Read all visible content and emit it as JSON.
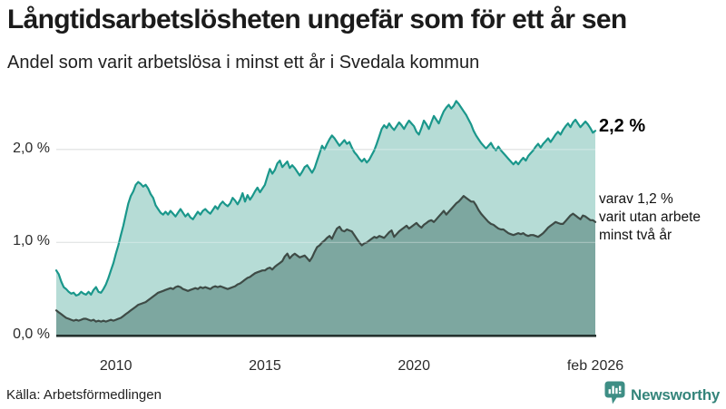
{
  "header": {
    "title": "Långtidsarbetslösheten ungefär som för ett år sen",
    "subtitle": "Andel som varit arbetslösa i minst ett år i Svedala kommun"
  },
  "annotations": {
    "latest_total": "2,2 %",
    "latest_sub_lines": [
      "varav 1,2 %",
      "varit utan arbete",
      "minst två år"
    ]
  },
  "footer": {
    "source": "Källa: Arbetsförmedlingen",
    "brand": "Newsworthy"
  },
  "colors": {
    "brand_teal": "#35857b",
    "line_1yr": "#1a978b",
    "fill_1yr": "#b6dcd6",
    "line_2yr": "#3e4b46",
    "fill_2yr": "#7da7a0",
    "grid": "#d8dcdb",
    "axis": "#25322f"
  },
  "chart_data": {
    "type": "area",
    "title": "Långtidsarbetslösheten ungefär som för ett år sen",
    "subtitle": "Andel som varit arbetslösa i minst ett år i Svedala kommun",
    "source": "Källa: Arbetsförmedlingen",
    "x_start": 2008.0,
    "x_end": 2026.083,
    "ylim": [
      0,
      2.6
    ],
    "grid": true,
    "grid_color": "#d8dcdb",
    "axis_color": "#25322f",
    "x_ticks": [
      {
        "label": "2010",
        "value": 2010
      },
      {
        "label": "2015",
        "value": 2015
      },
      {
        "label": "2020",
        "value": 2020
      },
      {
        "label": "feb 2026",
        "value": 2026.083
      }
    ],
    "y_ticks": [
      {
        "label": "0,0 %",
        "value": 0
      },
      {
        "label": "1,0 %",
        "value": 1
      },
      {
        "label": "2,0 %",
        "value": 2
      }
    ],
    "series": [
      {
        "name": "Andel som varit arbetslösa i minst ett år",
        "end_label": "2,2 %",
        "line_color": "#1a978b",
        "fill_color": "#b6dcd6",
        "values": [
          0.7,
          0.66,
          0.58,
          0.52,
          0.5,
          0.47,
          0.45,
          0.46,
          0.43,
          0.44,
          0.47,
          0.45,
          0.44,
          0.47,
          0.44,
          0.49,
          0.52,
          0.47,
          0.46,
          0.5,
          0.55,
          0.62,
          0.7,
          0.78,
          0.88,
          0.97,
          1.08,
          1.18,
          1.3,
          1.42,
          1.5,
          1.55,
          1.62,
          1.65,
          1.63,
          1.6,
          1.62,
          1.58,
          1.52,
          1.48,
          1.4,
          1.36,
          1.32,
          1.3,
          1.33,
          1.3,
          1.34,
          1.31,
          1.28,
          1.32,
          1.36,
          1.32,
          1.28,
          1.31,
          1.27,
          1.25,
          1.29,
          1.33,
          1.3,
          1.34,
          1.36,
          1.33,
          1.31,
          1.35,
          1.39,
          1.36,
          1.41,
          1.44,
          1.41,
          1.39,
          1.42,
          1.48,
          1.45,
          1.41,
          1.46,
          1.53,
          1.44,
          1.51,
          1.46,
          1.5,
          1.55,
          1.59,
          1.54,
          1.58,
          1.62,
          1.71,
          1.79,
          1.74,
          1.78,
          1.85,
          1.88,
          1.81,
          1.84,
          1.87,
          1.8,
          1.83,
          1.8,
          1.76,
          1.72,
          1.76,
          1.81,
          1.83,
          1.79,
          1.75,
          1.8,
          1.88,
          1.96,
          2.04,
          2.0,
          2.06,
          2.11,
          2.15,
          2.12,
          2.08,
          2.04,
          2.07,
          2.1,
          2.06,
          2.08,
          2.02,
          1.97,
          1.94,
          1.9,
          1.87,
          1.9,
          1.86,
          1.89,
          1.94,
          1.99,
          2.06,
          2.14,
          2.22,
          2.26,
          2.23,
          2.28,
          2.24,
          2.21,
          2.25,
          2.29,
          2.26,
          2.22,
          2.27,
          2.31,
          2.28,
          2.25,
          2.19,
          2.16,
          2.23,
          2.31,
          2.27,
          2.22,
          2.29,
          2.36,
          2.32,
          2.28,
          2.35,
          2.41,
          2.45,
          2.48,
          2.44,
          2.47,
          2.52,
          2.49,
          2.45,
          2.41,
          2.37,
          2.32,
          2.27,
          2.2,
          2.15,
          2.11,
          2.07,
          2.04,
          2.01,
          2.04,
          2.07,
          2.02,
          1.99,
          2.03,
          1.99,
          1.96,
          1.93,
          1.9,
          1.87,
          1.84,
          1.87,
          1.84,
          1.88,
          1.91,
          1.88,
          1.93,
          1.96,
          1.99,
          2.03,
          2.06,
          2.02,
          2.06,
          2.09,
          2.12,
          2.08,
          2.12,
          2.16,
          2.19,
          2.16,
          2.21,
          2.25,
          2.28,
          2.24,
          2.29,
          2.32,
          2.28,
          2.24,
          2.27,
          2.3,
          2.27,
          2.23,
          2.18,
          2.2
        ]
      },
      {
        "name": "varav arbetslösa i minst två år",
        "end_label": "varav 1,2 % varit utan arbete minst två år",
        "line_color": "#3e4b46",
        "fill_color": "#7da7a0",
        "values": [
          0.27,
          0.25,
          0.23,
          0.21,
          0.19,
          0.18,
          0.17,
          0.16,
          0.17,
          0.16,
          0.17,
          0.18,
          0.18,
          0.17,
          0.16,
          0.17,
          0.15,
          0.16,
          0.15,
          0.16,
          0.15,
          0.16,
          0.17,
          0.16,
          0.17,
          0.18,
          0.19,
          0.21,
          0.23,
          0.25,
          0.27,
          0.29,
          0.31,
          0.33,
          0.34,
          0.35,
          0.36,
          0.38,
          0.4,
          0.42,
          0.44,
          0.46,
          0.47,
          0.48,
          0.49,
          0.5,
          0.51,
          0.5,
          0.52,
          0.53,
          0.52,
          0.5,
          0.49,
          0.48,
          0.49,
          0.5,
          0.51,
          0.5,
          0.52,
          0.51,
          0.52,
          0.51,
          0.5,
          0.52,
          0.53,
          0.52,
          0.53,
          0.52,
          0.51,
          0.5,
          0.51,
          0.52,
          0.53,
          0.55,
          0.56,
          0.58,
          0.6,
          0.62,
          0.63,
          0.65,
          0.67,
          0.68,
          0.69,
          0.7,
          0.7,
          0.72,
          0.73,
          0.71,
          0.74,
          0.76,
          0.78,
          0.8,
          0.85,
          0.88,
          0.83,
          0.86,
          0.88,
          0.86,
          0.84,
          0.85,
          0.86,
          0.83,
          0.8,
          0.84,
          0.9,
          0.95,
          0.97,
          1.0,
          1.02,
          1.05,
          1.07,
          1.04,
          1.1,
          1.15,
          1.17,
          1.13,
          1.12,
          1.14,
          1.13,
          1.12,
          1.08,
          1.04,
          1.0,
          0.97,
          0.99,
          1.0,
          1.02,
          1.04,
          1.06,
          1.05,
          1.07,
          1.06,
          1.05,
          1.08,
          1.11,
          1.13,
          1.06,
          1.09,
          1.12,
          1.14,
          1.16,
          1.18,
          1.15,
          1.17,
          1.19,
          1.21,
          1.18,
          1.16,
          1.19,
          1.21,
          1.23,
          1.24,
          1.22,
          1.25,
          1.28,
          1.31,
          1.34,
          1.3,
          1.33,
          1.36,
          1.39,
          1.42,
          1.44,
          1.47,
          1.5,
          1.48,
          1.46,
          1.44,
          1.44,
          1.4,
          1.35,
          1.31,
          1.28,
          1.25,
          1.22,
          1.2,
          1.19,
          1.17,
          1.15,
          1.14,
          1.14,
          1.12,
          1.1,
          1.09,
          1.08,
          1.09,
          1.1,
          1.09,
          1.1,
          1.08,
          1.07,
          1.08,
          1.08,
          1.07,
          1.06,
          1.08,
          1.1,
          1.13,
          1.16,
          1.18,
          1.2,
          1.22,
          1.21,
          1.2,
          1.2,
          1.23,
          1.26,
          1.29,
          1.31,
          1.29,
          1.27,
          1.25,
          1.29,
          1.28,
          1.26,
          1.24,
          1.24,
          1.22
        ]
      }
    ]
  }
}
